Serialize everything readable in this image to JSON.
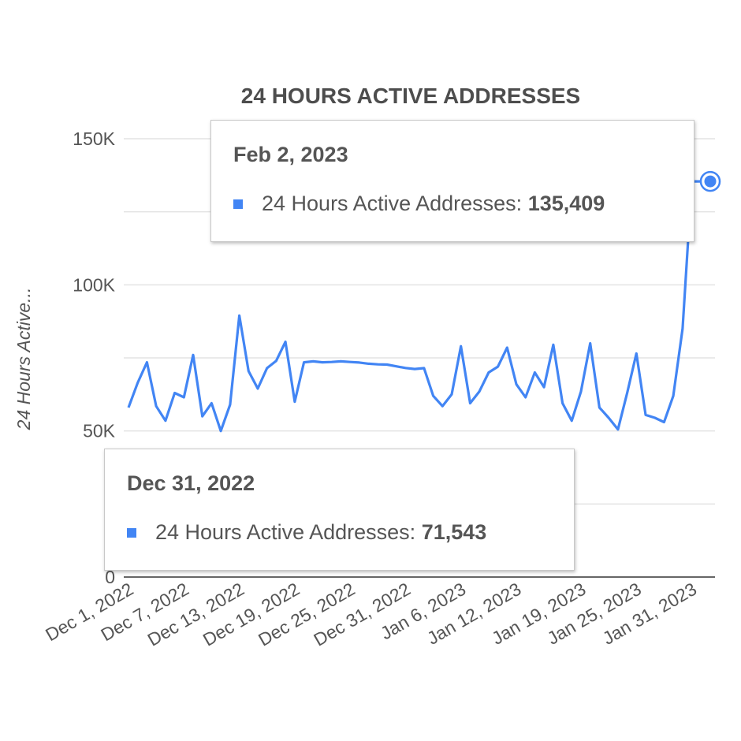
{
  "chart_data": {
    "type": "line",
    "title": "24 HOURS ACTIVE ADDRESSES",
    "ylabel": "24 Hours Active...",
    "xlabel": "",
    "ylim": [
      0,
      150000
    ],
    "yticks": [
      {
        "value": 0,
        "label": "0"
      },
      {
        "value": 50000,
        "label": "50K"
      },
      {
        "value": 100000,
        "label": "100K"
      },
      {
        "value": 150000,
        "label": "150K"
      }
    ],
    "xticks": [
      "Dec 1, 2022",
      "Dec 7, 2022",
      "Dec 13, 2022",
      "Dec 19, 2022",
      "Dec 25, 2022",
      "Dec 31, 2022",
      "Jan 6, 2023",
      "Jan 12, 2023",
      "Jan 19, 2023",
      "Jan 25, 2023",
      "Jan 31, 2023"
    ],
    "x": [
      "2022-12-01",
      "2022-12-02",
      "2022-12-03",
      "2022-12-04",
      "2022-12-05",
      "2022-12-06",
      "2022-12-07",
      "2022-12-08",
      "2022-12-09",
      "2022-12-10",
      "2022-12-11",
      "2022-12-12",
      "2022-12-13",
      "2022-12-14",
      "2022-12-15",
      "2022-12-16",
      "2022-12-17",
      "2022-12-18",
      "2022-12-19",
      "2022-12-20",
      "2022-12-21",
      "2022-12-22",
      "2022-12-23",
      "2022-12-24",
      "2022-12-25",
      "2022-12-26",
      "2022-12-27",
      "2022-12-28",
      "2022-12-29",
      "2022-12-30",
      "2022-12-31",
      "2023-01-01",
      "2023-01-02",
      "2023-01-03",
      "2023-01-04",
      "2023-01-05",
      "2023-01-06",
      "2023-01-07",
      "2023-01-08",
      "2023-01-09",
      "2023-01-10",
      "2023-01-11",
      "2023-01-12",
      "2023-01-13",
      "2023-01-14",
      "2023-01-15",
      "2023-01-16",
      "2023-01-17",
      "2023-01-18",
      "2023-01-19",
      "2023-01-20",
      "2023-01-21",
      "2023-01-22",
      "2023-01-23",
      "2023-01-24",
      "2023-01-25",
      "2023-01-26",
      "2023-01-27",
      "2023-01-28",
      "2023-01-29",
      "2023-01-30",
      "2023-01-31",
      "2023-02-01",
      "2023-02-02"
    ],
    "series": [
      {
        "name": "24 Hours Active Addresses",
        "color": "#4285f4",
        "values": [
          58000,
          66500,
          73500,
          58500,
          53500,
          63000,
          61500,
          76000,
          55000,
          59500,
          50000,
          59000,
          89500,
          70500,
          64500,
          71500,
          74000,
          80500,
          60000,
          73500,
          73800,
          73500,
          73600,
          73800,
          73600,
          73400,
          73000,
          72800,
          72700,
          72100,
          71543,
          71200,
          71500,
          62000,
          58500,
          62500,
          79000,
          59500,
          63500,
          70000,
          72000,
          78500,
          66000,
          61500,
          70000,
          65000,
          79500,
          59500,
          53500,
          63500,
          80000,
          58000,
          54500,
          50500,
          63000,
          76500,
          55500,
          54500,
          53000,
          62000,
          85000,
          135409,
          135409,
          135409
        ]
      }
    ],
    "grid": true,
    "legend": "none",
    "highlight_index": 61
  },
  "tooltips": {
    "top": {
      "date": "Feb 2, 2023",
      "series": "24 Hours Active Addresses:",
      "value": "135,409"
    },
    "bottom": {
      "date": "Dec 31, 2022",
      "series": "24 Hours Active Addresses:",
      "value": "71,543"
    }
  }
}
